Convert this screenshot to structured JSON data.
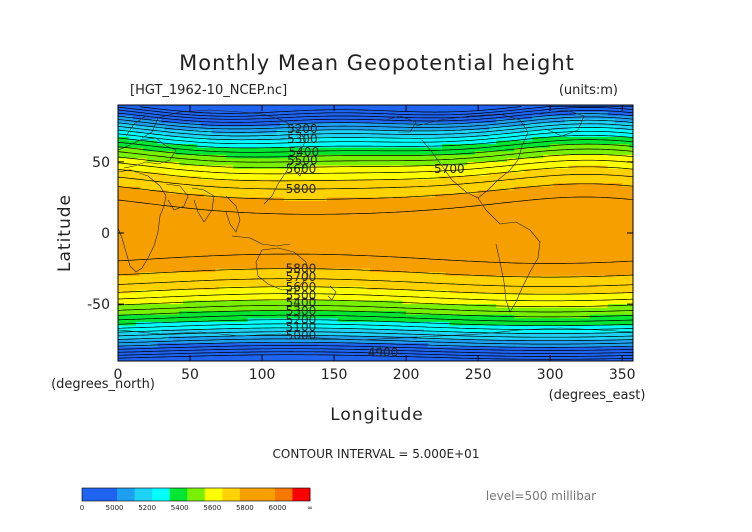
{
  "chart_data": {
    "type": "heatmap",
    "title": "Monthly Mean Geopotential height",
    "dataset_label": "[HGT_1962-10_NCEP.nc]",
    "units_label": "(units:m)",
    "xlabel": "Longitude",
    "ylabel": "Latitude",
    "x_unit_label": "(degrees_east)",
    "y_unit_label": "(degrees_north)",
    "xlim": [
      0,
      357.5
    ],
    "ylim": [
      -90,
      90
    ],
    "x_ticks": [
      0,
      50,
      100,
      150,
      200,
      250,
      300,
      350
    ],
    "y_ticks": [
      -50,
      0,
      50
    ],
    "contour_interval_text": "CONTOUR INTERVAL = 5.000E+01",
    "level_text": "level=500 millibar",
    "contour_interval": 50,
    "bands": [
      {
        "value": 4900,
        "color": "#1e64f0"
      },
      {
        "value": 5000,
        "color": "#1e64f0"
      },
      {
        "value": 5100,
        "color": "#1ea0f0"
      },
      {
        "value": 5200,
        "color": "#1ed2f5"
      },
      {
        "value": 5300,
        "color": "#00ffff"
      },
      {
        "value": 5400,
        "color": "#00e632"
      },
      {
        "value": 5500,
        "color": "#78f000"
      },
      {
        "value": 5600,
        "color": "#ffff00"
      },
      {
        "value": 5700,
        "color": "#ffd200"
      },
      {
        "value": 5800,
        "color": "#f5a000"
      },
      {
        "value": 5900,
        "color": "#f5a000"
      }
    ],
    "contour_labels": [
      {
        "text": "5200",
        "lon": 128,
        "lat": 73
      },
      {
        "text": "5300",
        "lon": 128,
        "lat": 66
      },
      {
        "text": "5400",
        "lon": 129,
        "lat": 57
      },
      {
        "text": "5500",
        "lon": 128,
        "lat": 51
      },
      {
        "text": "5600",
        "lon": 127,
        "lat": 45
      },
      {
        "text": "5700",
        "lon": 230,
        "lat": 45
      },
      {
        "text": "5800",
        "lon": 127,
        "lat": 31
      },
      {
        "text": "5800",
        "lon": 127,
        "lat": -25
      },
      {
        "text": "5700",
        "lon": 127,
        "lat": -31
      },
      {
        "text": "5600",
        "lon": 127,
        "lat": -38
      },
      {
        "text": "5500",
        "lon": 127,
        "lat": -44
      },
      {
        "text": "5400",
        "lon": 127,
        "lat": -49
      },
      {
        "text": "5300",
        "lon": 127,
        "lat": -55
      },
      {
        "text": "5200",
        "lon": 127,
        "lat": -61
      },
      {
        "text": "5100",
        "lon": 127,
        "lat": -66
      },
      {
        "text": "5000",
        "lon": 127,
        "lat": -72
      },
      {
        "text": "4900",
        "lon": 184,
        "lat": -84
      }
    ],
    "colorbar": {
      "ticks": [
        "0",
        "5000",
        "5200",
        "5400",
        "5600",
        "5800",
        "6000",
        "∞"
      ],
      "colors": [
        "#1e64f0",
        "#1e64f0",
        "#1ea0f0",
        "#1ed2f5",
        "#00ffff",
        "#00e632",
        "#78f000",
        "#ffff00",
        "#ffd200",
        "#f5a000",
        "#f5a000",
        "#f57800",
        "#ff0000"
      ]
    },
    "grid": false,
    "legend": "bottom-left"
  }
}
